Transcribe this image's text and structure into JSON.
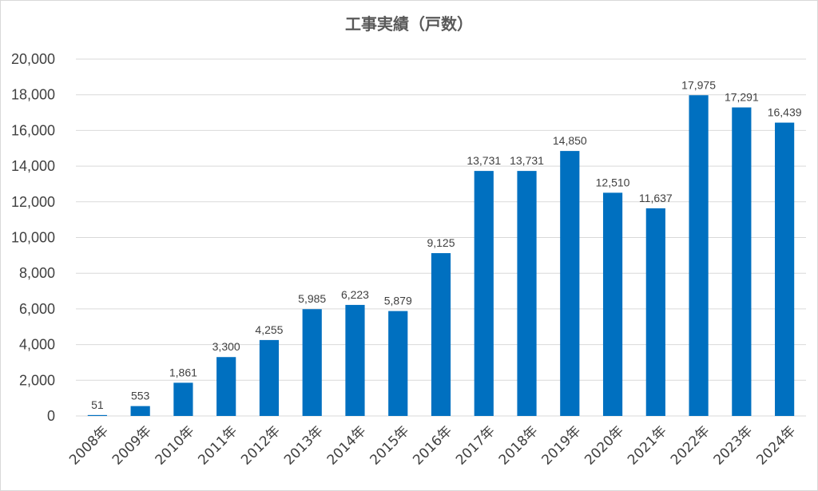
{
  "chart_data": {
    "type": "bar",
    "title": "工事実績（戸数）",
    "categories": [
      "2008年",
      "2009年",
      "2010年",
      "2011年",
      "2012年",
      "2013年",
      "2014年",
      "2015年",
      "2016年",
      "2017年",
      "2018年",
      "2019年",
      "2020年",
      "2021年",
      "2022年",
      "2023年",
      "2024年"
    ],
    "values": [
      51,
      553,
      1861,
      3300,
      4255,
      5985,
      6223,
      5879,
      9125,
      13731,
      13731,
      14850,
      12510,
      11637,
      17975,
      17291,
      16439
    ],
    "value_labels": [
      "51",
      "553",
      "1,861",
      "3,300",
      "4,255",
      "5,985",
      "6,223",
      "5,879",
      "9,125",
      "13,731",
      "13,731",
      "14,850",
      "12,510",
      "11,637",
      "17,975",
      "17,291",
      "16,439"
    ],
    "yticks": [
      0,
      2000,
      4000,
      6000,
      8000,
      10000,
      12000,
      14000,
      16000,
      18000,
      20000
    ],
    "ytick_labels": [
      "0",
      "2,000",
      "4,000",
      "6,000",
      "8,000",
      "10,000",
      "12,000",
      "14,000",
      "16,000",
      "18,000",
      "20,000"
    ],
    "ylim": [
      0,
      20000
    ],
    "xlabel": "",
    "ylabel": "",
    "grid": true,
    "legend": "none",
    "bar_color": "#0070C0"
  }
}
